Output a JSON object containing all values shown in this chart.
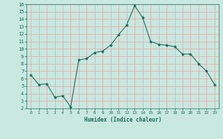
{
  "x": [
    0,
    1,
    2,
    3,
    4,
    5,
    6,
    7,
    8,
    9,
    10,
    11,
    12,
    13,
    14,
    15,
    16,
    17,
    18,
    19,
    20,
    21,
    22,
    23
  ],
  "y": [
    6.5,
    5.2,
    5.3,
    3.5,
    3.7,
    2.2,
    8.5,
    8.7,
    9.5,
    9.7,
    10.5,
    11.9,
    13.2,
    15.8,
    14.2,
    11.0,
    10.6,
    10.5,
    10.3,
    9.3,
    9.3,
    8.0,
    7.0,
    5.2
  ],
  "title": "",
  "xlabel": "Humidex (Indice chaleur)",
  "ylabel": "",
  "line_color": "#1a6b5a",
  "marker": "*",
  "marker_size": 3,
  "bg_color": "#c8e8e0",
  "grid_color": "#f0a0a0",
  "xlim": [
    -0.5,
    23.5
  ],
  "ylim": [
    2,
    16
  ],
  "yticks": [
    2,
    3,
    4,
    5,
    6,
    7,
    8,
    9,
    10,
    11,
    12,
    13,
    14,
    15,
    16
  ],
  "xticks": [
    0,
    1,
    2,
    3,
    4,
    5,
    6,
    7,
    8,
    9,
    10,
    11,
    12,
    13,
    14,
    15,
    16,
    17,
    18,
    19,
    20,
    21,
    22,
    23
  ]
}
